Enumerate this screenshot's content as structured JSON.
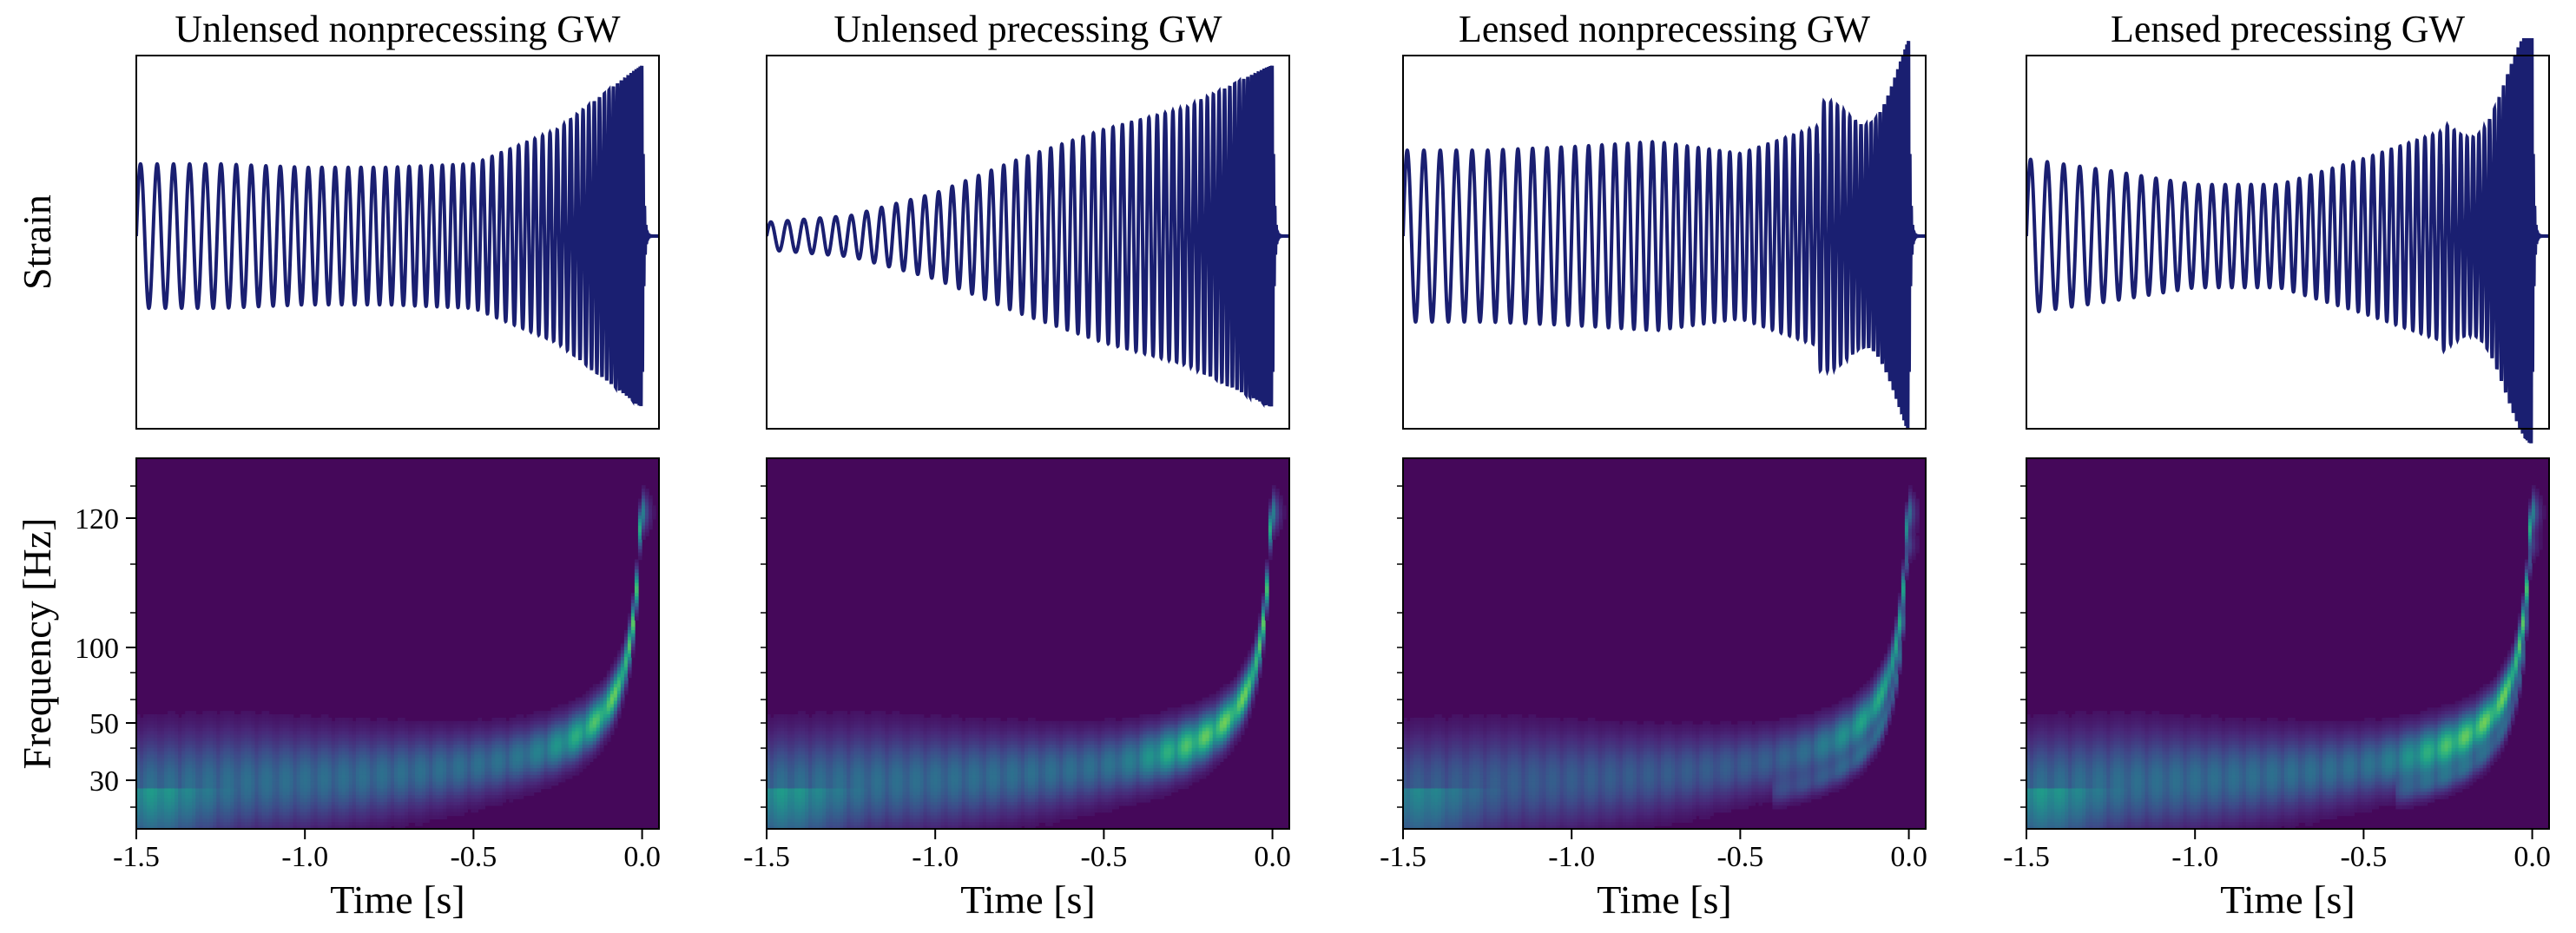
{
  "chart_data": [
    {
      "type": "line",
      "title": "Unlensed nonprecessing GW",
      "ylabel": "Strain",
      "xlabel": "",
      "xlim": [
        -1.5,
        0.05
      ],
      "waveform": {
        "f0": 20,
        "f_end": 250,
        "amp": [
          0.42,
          0.42,
          0.4,
          0.4,
          0.42,
          0.62,
          1.0
        ],
        "ringdown_end": 0.0,
        "lensing": "none"
      },
      "colors": {
        "line": "#1a1f71"
      }
    },
    {
      "type": "line",
      "title": "Unlensed precessing GW",
      "ylabel": "",
      "xlabel": "",
      "xlim": [
        -1.5,
        0.05
      ],
      "waveform": {
        "f0": 20,
        "f_end": 250,
        "amp": [
          0.08,
          0.12,
          0.25,
          0.45,
          0.62,
          0.75,
          1.0
        ],
        "ringdown_end": 0.0,
        "lensing": "none"
      },
      "colors": {
        "line": "#1a1f71"
      }
    },
    {
      "type": "line",
      "title": "Lensed nonprecessing GW",
      "ylabel": "",
      "xlabel": "",
      "xlim": [
        -1.5,
        0.05
      ],
      "waveform": {
        "f0": 20,
        "f_end": 250,
        "amp": [
          0.5,
          0.5,
          0.52,
          0.55,
          0.48,
          0.65,
          1.0
        ],
        "ringdown_end": 0.0,
        "lensing": "beating"
      },
      "colors": {
        "line": "#1a1f71"
      }
    },
    {
      "type": "line",
      "title": "Lensed precessing GW",
      "ylabel": "",
      "xlabel": "",
      "xlim": [
        -1.5,
        0.05
      ],
      "waveform": {
        "f0": 20,
        "f_end": 250,
        "amp": [
          0.45,
          0.38,
          0.3,
          0.3,
          0.45,
          0.62,
          1.0
        ],
        "ringdown_end": 0.0,
        "lensing": "beating"
      },
      "colors": {
        "line": "#1a1f71"
      }
    },
    {
      "type": "heatmap",
      "title": "",
      "ylabel": "Frequency [Hz]",
      "xlabel": "Time [s]",
      "xlim": [
        -1.5,
        0.05
      ],
      "xticks": [
        "-1.5",
        "-1.0",
        "-0.5",
        "0.0"
      ],
      "yticks": [
        "30",
        "50",
        "100",
        "120"
      ],
      "colormap": "viridis",
      "track": {
        "primary": 1.0,
        "secondary": 0.0,
        "precessing": false
      }
    },
    {
      "type": "heatmap",
      "title": "",
      "ylabel": "",
      "xlabel": "Time [s]",
      "xlim": [
        -1.5,
        0.05
      ],
      "xticks": [
        "-1.5",
        "-1.0",
        "-0.5",
        "0.0"
      ],
      "yticks": [],
      "colormap": "viridis",
      "track": {
        "primary": 1.0,
        "secondary": 0.0,
        "precessing": true
      }
    },
    {
      "type": "heatmap",
      "title": "",
      "ylabel": "",
      "xlabel": "Time [s]",
      "xlim": [
        -1.5,
        0.05
      ],
      "xticks": [
        "-1.5",
        "-1.0",
        "-0.5",
        "0.0"
      ],
      "yticks": [],
      "colormap": "viridis",
      "track": {
        "primary": 0.8,
        "secondary": 0.7,
        "precessing": false
      }
    },
    {
      "type": "heatmap",
      "title": "",
      "ylabel": "",
      "xlabel": "Time [s]",
      "xlim": [
        -1.5,
        0.05
      ],
      "xticks": [
        "-1.5",
        "-1.0",
        "-0.5",
        "0.0"
      ],
      "yticks": [],
      "colormap": "viridis",
      "track": {
        "primary": 1.0,
        "secondary": 0.6,
        "precessing": true
      }
    }
  ]
}
